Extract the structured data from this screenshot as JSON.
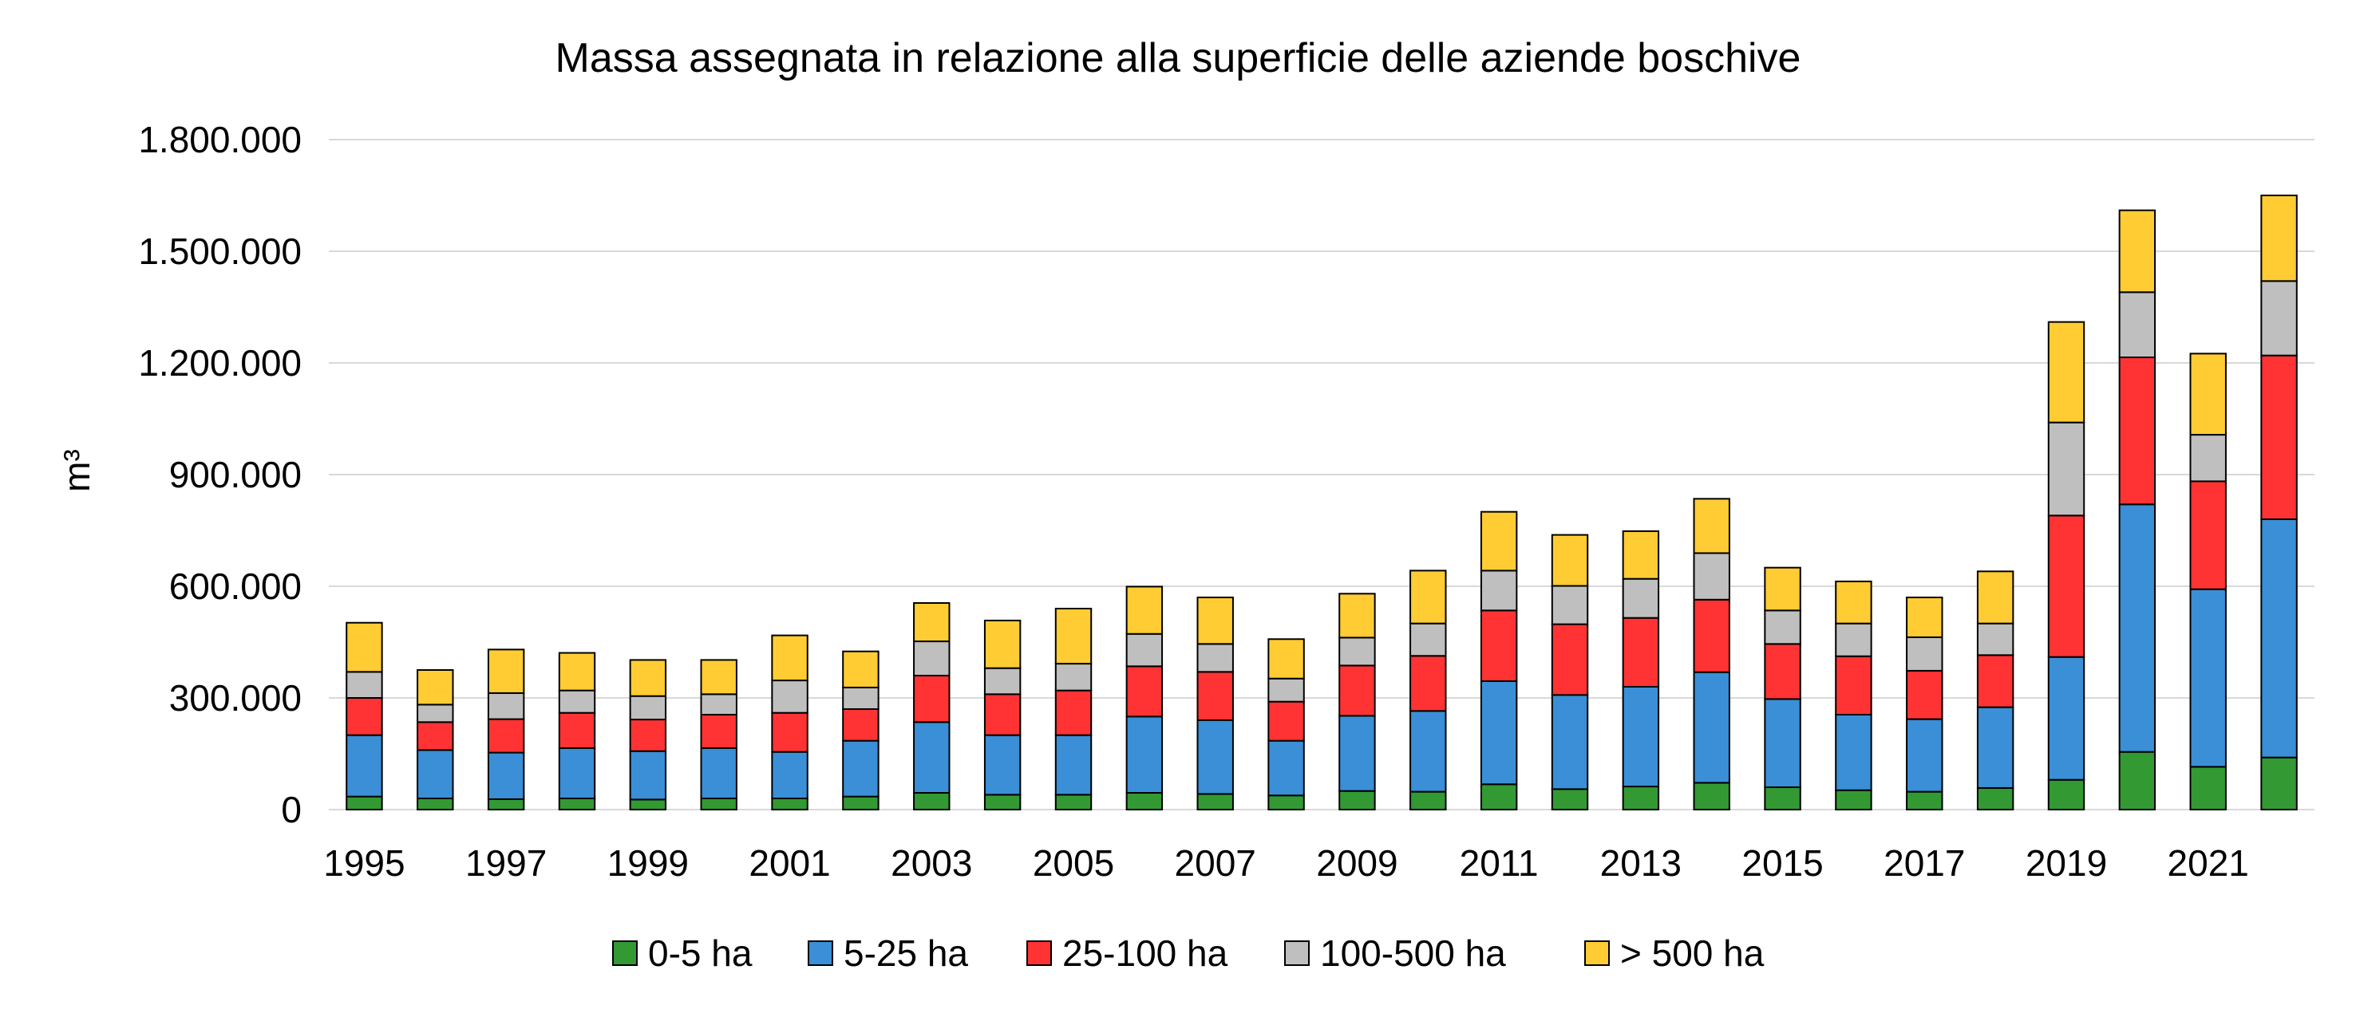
{
  "chart_data": {
    "type": "bar",
    "stacked": true,
    "title": "Massa assegnata in relazione alla superficie delle aziende boschive",
    "ylabel": "m³",
    "xlabel": "",
    "ylim": [
      0,
      1800000
    ],
    "yticks": [
      0,
      300000,
      600000,
      900000,
      1200000,
      1500000,
      1800000
    ],
    "ytick_labels": [
      "0",
      "300.000",
      "600.000",
      "900.000",
      "1.200.000",
      "1.500.000",
      "1.800.000"
    ],
    "categories": [
      "1995",
      "1996",
      "1997",
      "1998",
      "1999",
      "2000",
      "2001",
      "2002",
      "2003",
      "2004",
      "2005",
      "2006",
      "2007",
      "2008",
      "2009",
      "2010",
      "2011",
      "2012",
      "2013",
      "2014",
      "2015",
      "2016",
      "2017",
      "2018",
      "2019",
      "2020",
      "2021",
      "2022"
    ],
    "xtick_labels": [
      "1995",
      "1997",
      "1999",
      "2001",
      "2003",
      "2005",
      "2007",
      "2009",
      "2011",
      "2013",
      "2015",
      "2017",
      "2019",
      "2021"
    ],
    "grid": true,
    "legend_position": "bottom",
    "series": [
      {
        "name": "0-5 ha",
        "color": "#339933",
        "values": [
          35000,
          30000,
          28000,
          30000,
          27000,
          30000,
          30000,
          35000,
          45000,
          40000,
          40000,
          45000,
          42000,
          38000,
          50000,
          48000,
          68000,
          55000,
          62000,
          72000,
          60000,
          52000,
          48000,
          58000,
          80000,
          155000,
          115000,
          140000
        ]
      },
      {
        "name": "5-25 ha",
        "color": "#3a8fd6",
        "values": [
          165000,
          130000,
          125000,
          135000,
          130000,
          135000,
          125000,
          150000,
          190000,
          160000,
          160000,
          205000,
          198000,
          147000,
          202000,
          217000,
          277000,
          253000,
          268000,
          297000,
          237000,
          203000,
          195000,
          217000,
          330000,
          665000,
          477000,
          640000
        ]
      },
      {
        "name": "25-100 ha",
        "color": "#ff3333",
        "values": [
          100000,
          75000,
          90000,
          95000,
          85000,
          90000,
          105000,
          85000,
          125000,
          110000,
          120000,
          135000,
          130000,
          105000,
          135000,
          148000,
          190000,
          190000,
          185000,
          195000,
          148000,
          157000,
          130000,
          140000,
          380000,
          395000,
          290000,
          440000
        ]
      },
      {
        "name": "100-500 ha",
        "color": "#bfbfbf",
        "values": [
          70000,
          47000,
          70000,
          60000,
          63000,
          55000,
          87000,
          58000,
          92000,
          70000,
          72000,
          87000,
          75000,
          62000,
          75000,
          87000,
          107000,
          103000,
          105000,
          125000,
          90000,
          88000,
          90000,
          85000,
          250000,
          175000,
          125000,
          200000
        ]
      },
      {
        "name": "> 500 ha",
        "color": "#ffcc33",
        "values": [
          132000,
          93000,
          117000,
          101000,
          97000,
          92000,
          121000,
          97000,
          103000,
          128000,
          148000,
          127000,
          125000,
          106000,
          118000,
          142000,
          158000,
          137000,
          128000,
          146000,
          115000,
          113000,
          107000,
          140000,
          270000,
          220000,
          218000,
          230000
        ]
      }
    ]
  }
}
